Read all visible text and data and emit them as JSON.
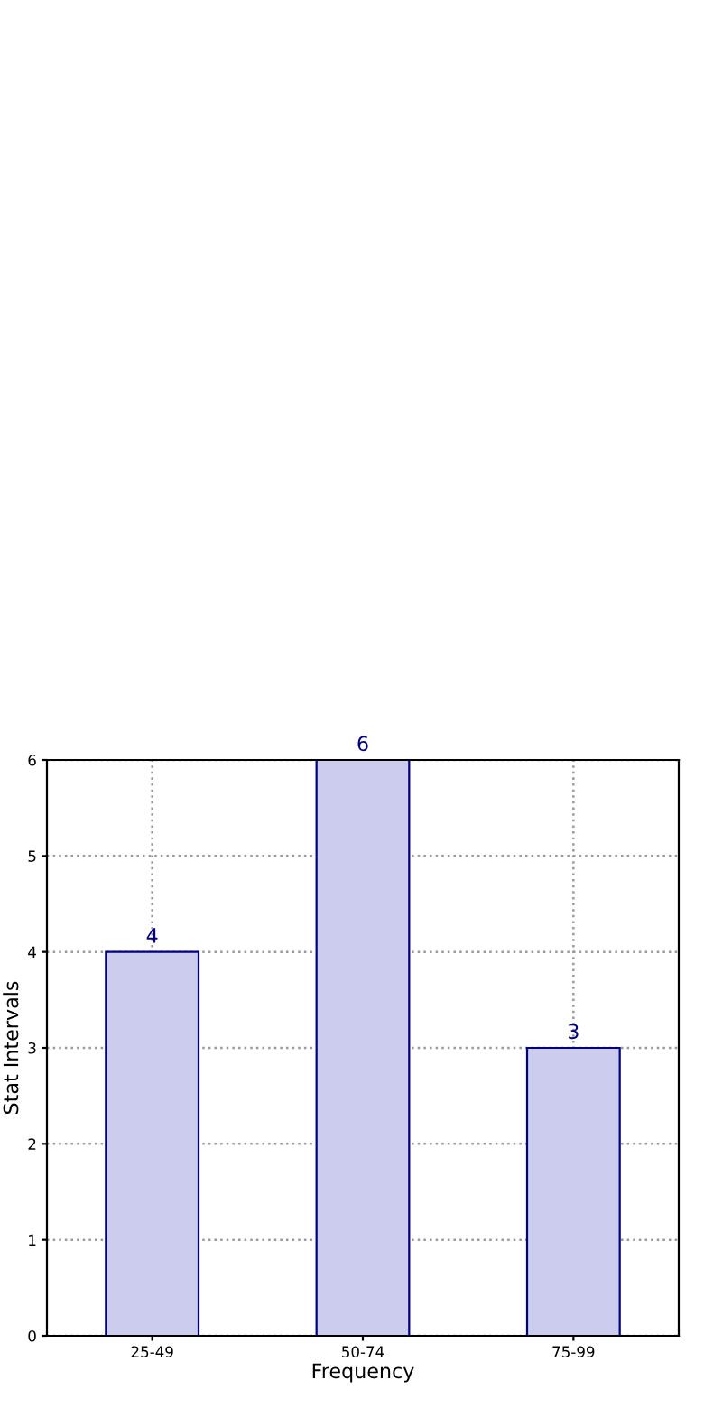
{
  "chart_data": {
    "type": "bar",
    "xlabel": "Frequency",
    "ylabel": "Stat Intervals",
    "categories": [
      "25-49",
      "50-74",
      "75-99"
    ],
    "series": [
      {
        "color": "#ccccee",
        "values": [
          4,
          6,
          3
        ]
      }
    ],
    "ylim": [
      0,
      6
    ],
    "yticks": [
      0,
      1,
      2,
      3,
      4,
      5,
      6
    ],
    "grid": true,
    "data_labels": true
  }
}
